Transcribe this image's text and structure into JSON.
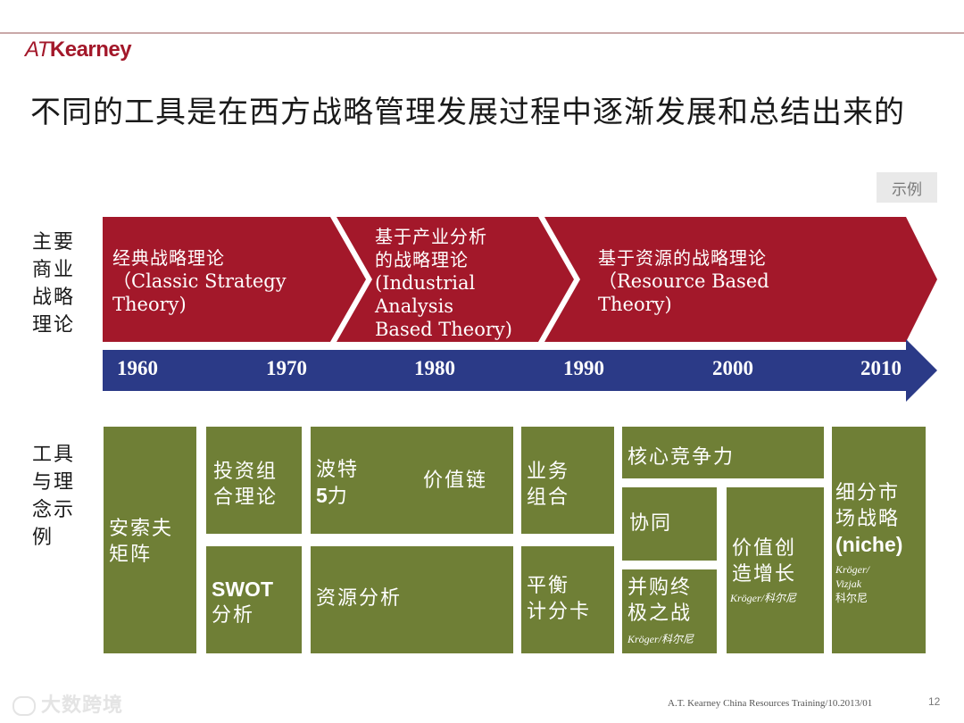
{
  "header": {
    "logo_prefix": "AT",
    "logo_name": "Kearney",
    "title": "不同的工具是在西方战略管理发展过程中逐渐发展和总结出来的",
    "example_tag": "示例"
  },
  "side_labels": {
    "theories": [
      "主要",
      "商业",
      "战略",
      "理论"
    ],
    "tools": [
      "工具",
      "与理",
      "念示",
      "例"
    ]
  },
  "theories": [
    {
      "zh": "经典战略理论",
      "en": [
        "（Classic Strategy",
        "Theory)"
      ]
    },
    {
      "zh_lines": [
        "基于产业分析",
        "的战略理论"
      ],
      "en": [
        "(Industrial",
        "Analysis",
        "Based Theory)"
      ]
    },
    {
      "zh": "基于资源的战略理论",
      "en": [
        "（Resource Based",
        "Theory)"
      ]
    }
  ],
  "timeline": {
    "years": [
      "1960",
      "1970",
      "1980",
      "1990",
      "2000",
      "2010"
    ],
    "colors": {
      "theory_band": "#a3182a",
      "timeline": "#2b3a87",
      "tool": "#6f7f36"
    }
  },
  "tools": {
    "ansoff": [
      "安索夫",
      "矩阵"
    ],
    "portfolio": [
      "投资组",
      "合理论"
    ],
    "swot_bold": "SWOT",
    "swot_zh": "分析",
    "porter_lines": [
      "波特"
    ],
    "porter_bold": "5",
    "porter_suffix": "力",
    "value_chain": "价值链",
    "resource_analysis": "资源分析",
    "business_portfolio": [
      "业务",
      "组合"
    ],
    "balanced_scorecard": [
      "平衡",
      "计分卡"
    ],
    "core_competence": "核心竞争力",
    "synergy": "协同",
    "merger_endgame": [
      "并购终",
      "极之战"
    ],
    "merger_note": "Kröger/科尔尼",
    "value_growth": [
      "价值创",
      "造增长"
    ],
    "value_growth_note": "Kröger/科尔尼",
    "niche_zh": [
      "细分市",
      "场战略"
    ],
    "niche_en": "(niche)",
    "niche_note": [
      "Kröger/",
      "Vizjak",
      "科尔尼"
    ]
  },
  "footer": {
    "source": "A.T. Kearney  China Resources  Training/10.2013/01",
    "page": "12",
    "watermark": "大数跨境"
  }
}
